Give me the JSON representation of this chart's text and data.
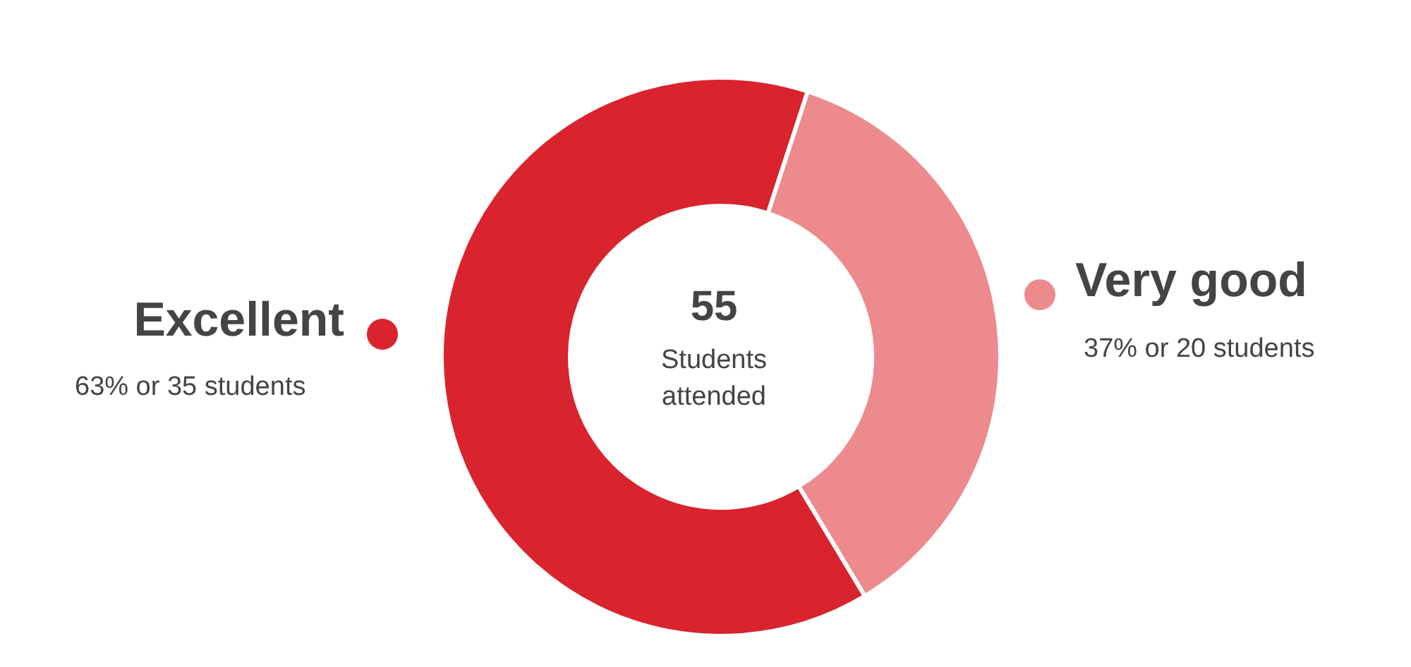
{
  "chart_data": {
    "type": "donut",
    "categories": [
      "Excellent",
      "Very good"
    ],
    "values": [
      35,
      20
    ],
    "colors": [
      "#d9232d",
      "#ec8a8d"
    ],
    "value_labels": [
      "63% or 35 students",
      "37% or 20 students"
    ],
    "annotations": [
      "55",
      "Students attended"
    ]
  }
}
